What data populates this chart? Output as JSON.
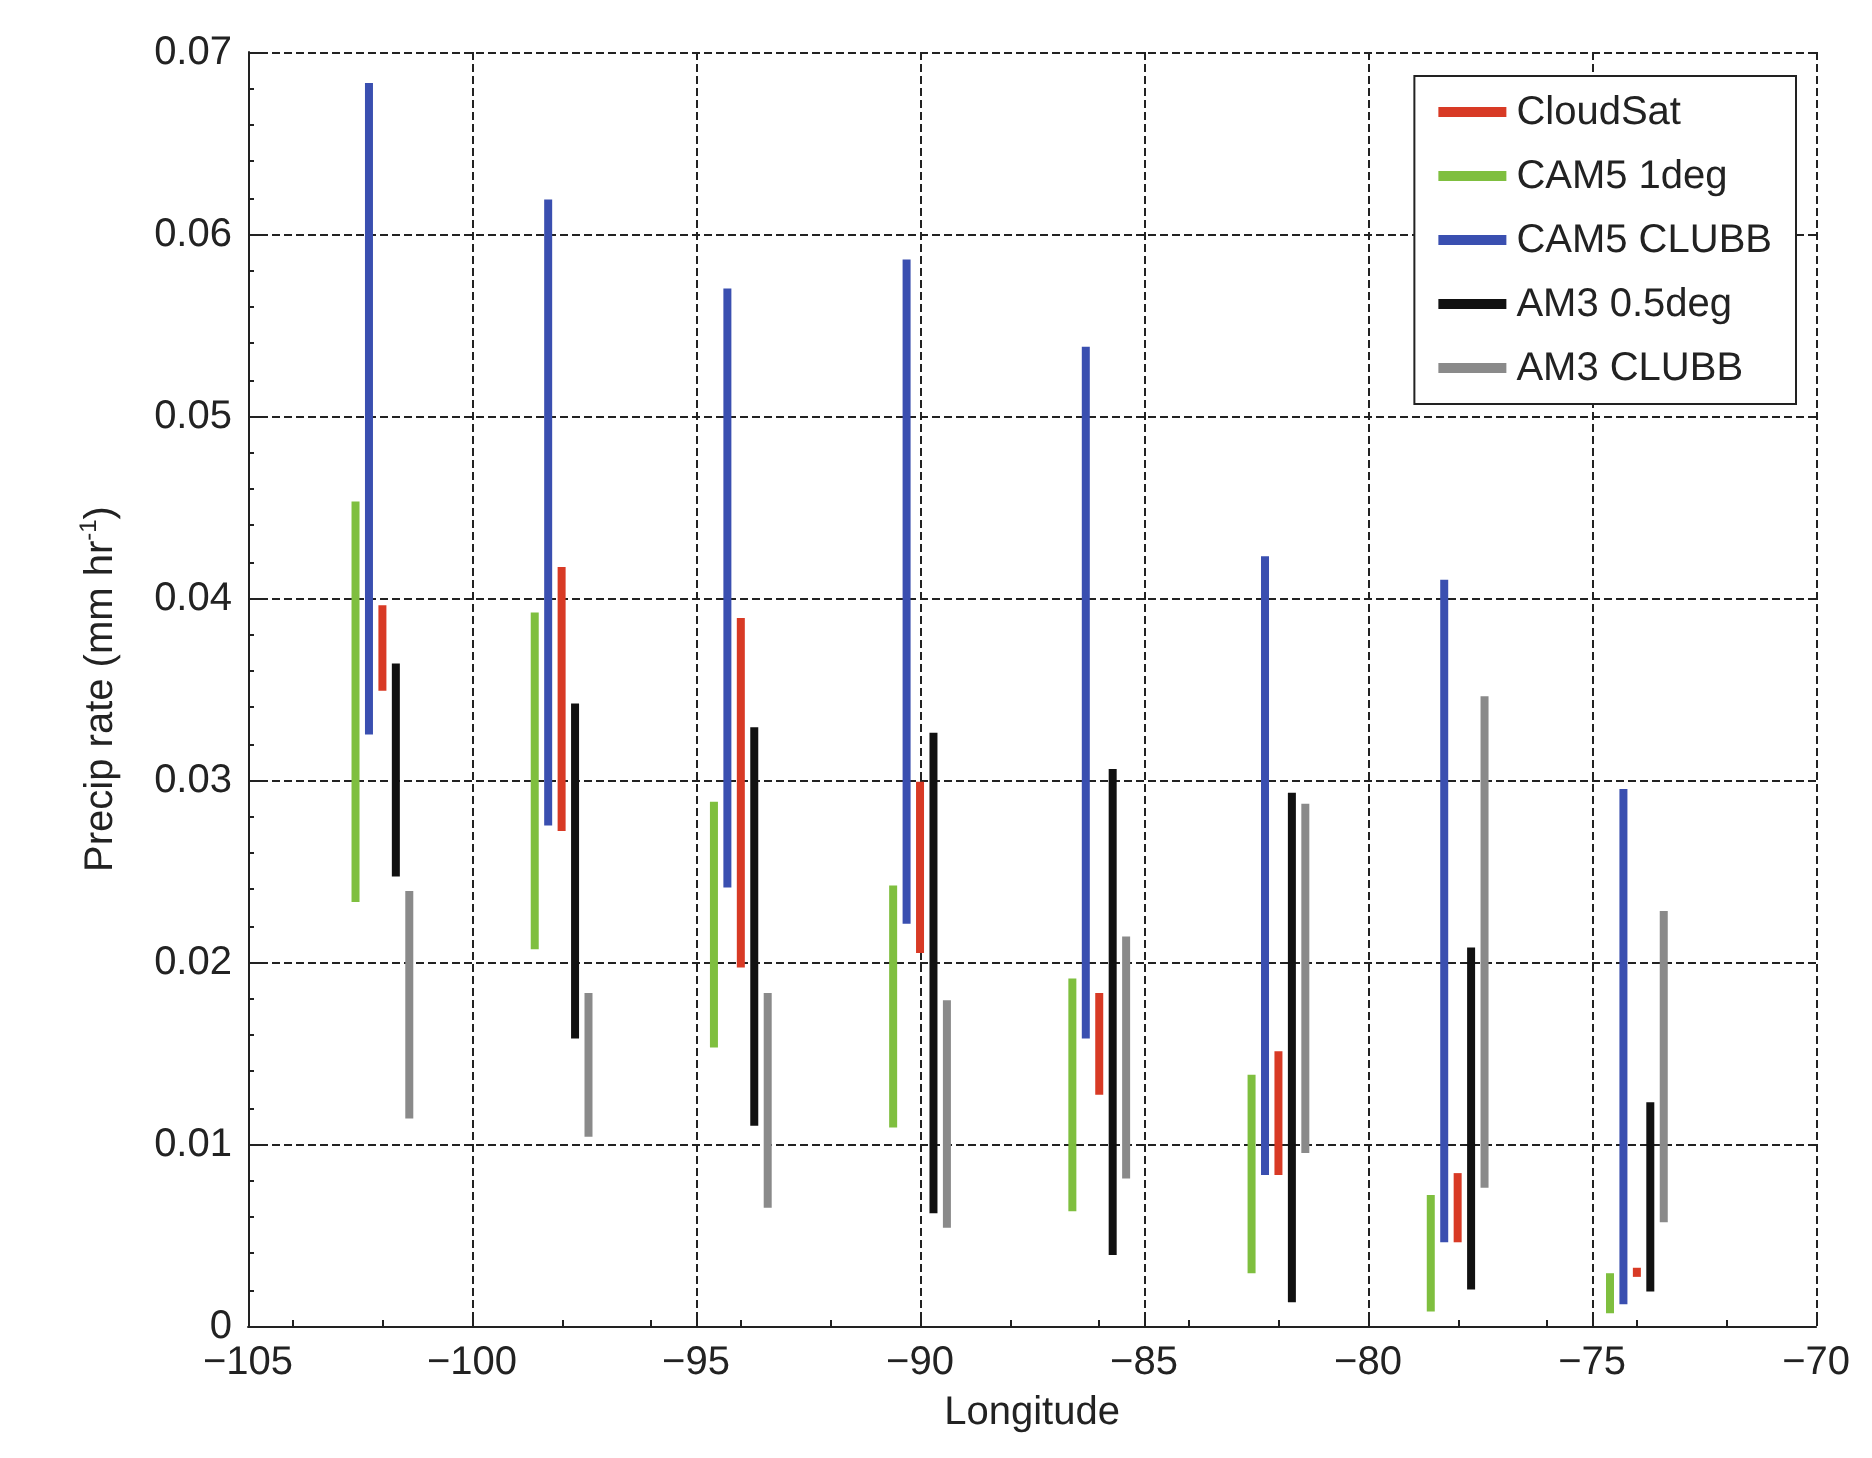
{
  "chart_data": {
    "type": "bar",
    "xlabel": "Longitude",
    "ylabel": "Precip rate (mm hr$^{-1}$)",
    "xlim": [
      -105,
      -70
    ],
    "xticks": [
      -105,
      -100,
      -95,
      -90,
      -85,
      -80,
      -75,
      -70
    ],
    "ylim": [
      0,
      0.07
    ],
    "yticks": [
      0,
      0.01,
      0.02,
      0.03,
      0.04,
      0.05,
      0.06,
      0.07
    ],
    "grid": true,
    "legend": "top right",
    "series": [
      {
        "name": "CloudSat",
        "color": "#d83a25",
        "x": [
          -102,
          -98,
          -94,
          -90,
          -86,
          -82,
          -78,
          -74
        ],
        "base": [
          0.0349,
          0.0272,
          0.0197,
          0.0205,
          0.0127,
          0.0083,
          0.0046,
          0.0027
        ],
        "values": [
          0.0047,
          0.0145,
          0.0192,
          0.0094,
          0.0056,
          0.0068,
          0.0038,
          0.0005
        ]
      },
      {
        "name": "CAM5 1deg",
        "color": "#7fbf3f",
        "x": [
          -102.6,
          -98.6,
          -94.6,
          -90.6,
          -86.6,
          -82.6,
          -78.6,
          -74.6
        ],
        "base": [
          0.0233,
          0.0207,
          0.0153,
          0.0109,
          0.0063,
          0.0029,
          0.0008,
          0.0007
        ],
        "values": [
          0.022,
          0.0185,
          0.0135,
          0.0133,
          0.0128,
          0.0109,
          0.0064,
          0.0022
        ]
      },
      {
        "name": "CAM5 CLUBB",
        "color": "#3a4fb0",
        "x": [
          -102.3,
          -98.3,
          -94.3,
          -90.3,
          -86.3,
          -82.3,
          -78.3,
          -74.3
        ],
        "base": [
          0.0325,
          0.0275,
          0.0241,
          0.0221,
          0.0158,
          0.0083,
          0.0046,
          0.0012
        ],
        "values": [
          0.0358,
          0.0344,
          0.0329,
          0.0365,
          0.038,
          0.034,
          0.0364,
          0.0283
        ]
      },
      {
        "name": "AM3 0.5deg",
        "color": "#111111",
        "x": [
          -101.7,
          -97.7,
          -93.7,
          -89.7,
          -85.7,
          -81.7,
          -77.7,
          -73.7
        ],
        "base": [
          0.0247,
          0.0158,
          0.011,
          0.0062,
          0.0039,
          0.0013,
          0.002,
          0.0019
        ],
        "values": [
          0.0117,
          0.0184,
          0.0219,
          0.0264,
          0.0267,
          0.028,
          0.0188,
          0.0104
        ]
      },
      {
        "name": "AM3 CLUBB",
        "color": "#8a8a8a",
        "x": [
          -101.4,
          -97.4,
          -93.4,
          -89.4,
          -85.4,
          -81.4,
          -77.4,
          -73.4
        ],
        "base": [
          0.0114,
          0.0104,
          0.0065,
          0.0054,
          0.0081,
          0.0095,
          0.0076,
          0.0057
        ],
        "values": [
          0.0125,
          0.0079,
          0.0118,
          0.0125,
          0.0133,
          0.0192,
          0.027,
          0.0171
        ]
      }
    ]
  }
}
